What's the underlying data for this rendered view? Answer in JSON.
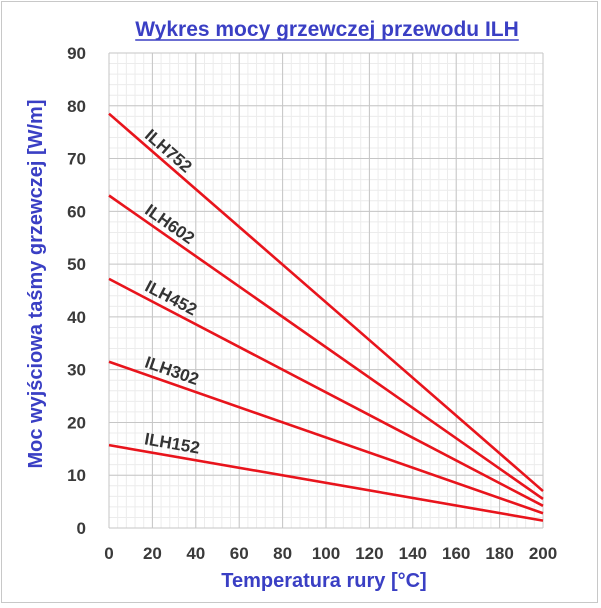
{
  "chart_data": {
    "type": "line",
    "title": "Wykres mocy grzewczej przewodu ILH",
    "xlabel": "Temperatura rury [°C]",
    "ylabel": "Moc wyjściowa taśmy grzewczej [W/m]",
    "xlim": [
      0,
      200
    ],
    "ylim": [
      0,
      90
    ],
    "x_ticks": [
      0,
      20,
      40,
      60,
      80,
      100,
      120,
      140,
      160,
      180,
      200
    ],
    "y_ticks": [
      0,
      10,
      20,
      30,
      40,
      50,
      60,
      70,
      80,
      90
    ],
    "grid": true,
    "legend": "none",
    "line_color": "#e8141c",
    "series": [
      {
        "name": "ILH752",
        "x": [
          0,
          200
        ],
        "values": [
          78.5,
          7.0
        ]
      },
      {
        "name": "ILH602",
        "x": [
          0,
          200
        ],
        "values": [
          63.0,
          5.5
        ]
      },
      {
        "name": "ILH452",
        "x": [
          0,
          200
        ],
        "values": [
          47.2,
          4.2
        ]
      },
      {
        "name": "ILH302",
        "x": [
          0,
          200
        ],
        "values": [
          31.5,
          2.8
        ]
      },
      {
        "name": "ILH152",
        "x": [
          0,
          200
        ],
        "values": [
          15.7,
          1.4
        ]
      }
    ]
  }
}
